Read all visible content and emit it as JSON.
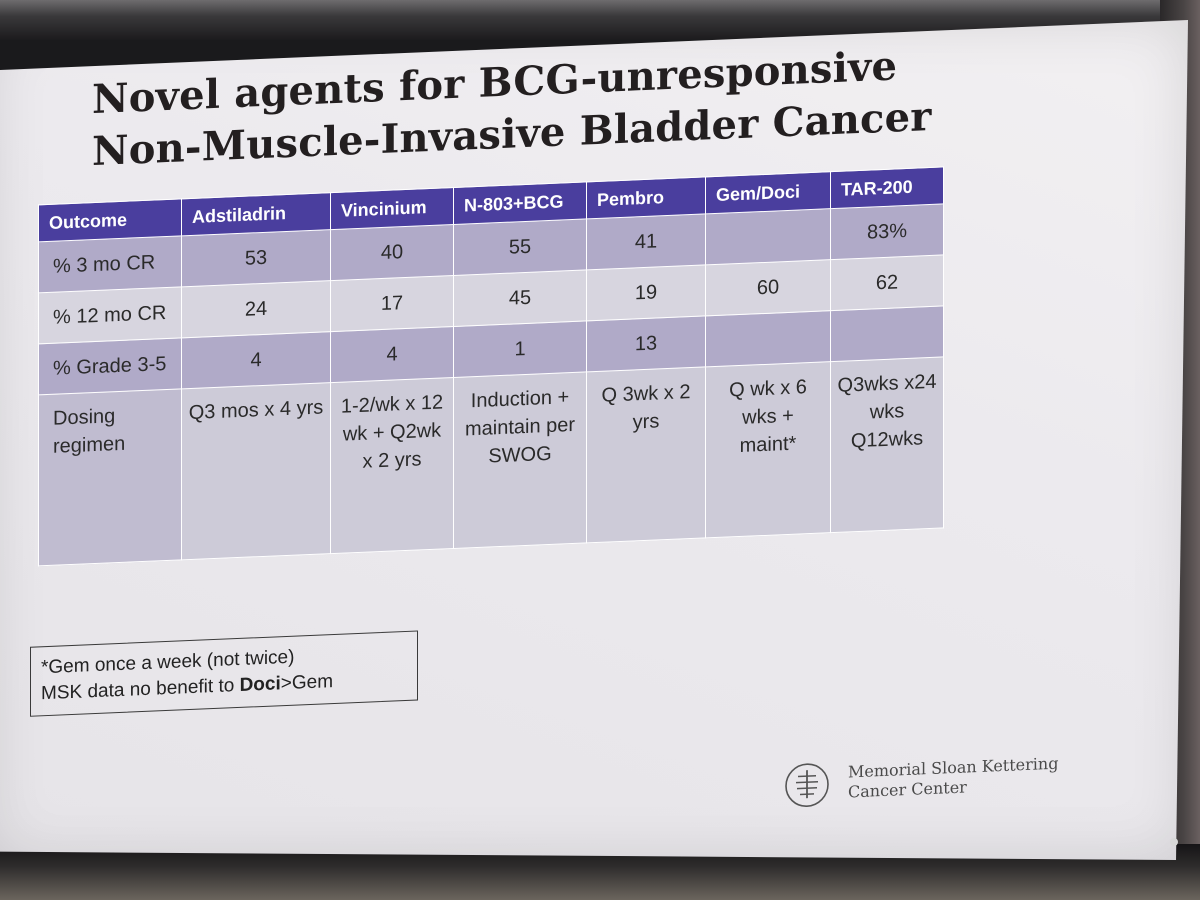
{
  "slide": {
    "title_line1": "Novel agents for BCG-unresponsive",
    "title_line2": "Non-Muscle-Invasive Bladder Cancer"
  },
  "table": {
    "columns": [
      "Outcome",
      "Adstiladrin",
      "Vincinium",
      "N-803+BCG",
      "Pembro",
      "Gem/Doci",
      "TAR-200"
    ],
    "rows": [
      {
        "label": "% 3 mo CR",
        "cells": [
          "53",
          "40",
          "55",
          "41",
          "",
          "83%"
        ]
      },
      {
        "label": "% 12 mo CR",
        "cells": [
          "24",
          "17",
          "45",
          "19",
          "60",
          "62"
        ]
      },
      {
        "label": "% Grade 3-5",
        "cells": [
          "4",
          "4",
          "1",
          "13",
          "",
          ""
        ]
      },
      {
        "label": "Dosing regimen",
        "cells": [
          "Q3 mos x 4 yrs",
          "1-2/wk x 12 wk + Q2wk x 2 yrs",
          "Induction + maintain per SWOG",
          "Q 3wk x 2 yrs",
          "Q wk x 6 wks + maint*",
          "Q3wks x24 wks Q12wks"
        ]
      }
    ]
  },
  "note": {
    "line1": "*Gem once a week (not twice)",
    "line2_prefix": "MSK data no benefit to ",
    "line2_bold": "Doci",
    "line2_suffix": ">Gem"
  },
  "logo": {
    "line1": "Memorial Sloan Kettering",
    "line2": "Cancer Center",
    "icon": "msk-tree-logo-icon"
  }
}
